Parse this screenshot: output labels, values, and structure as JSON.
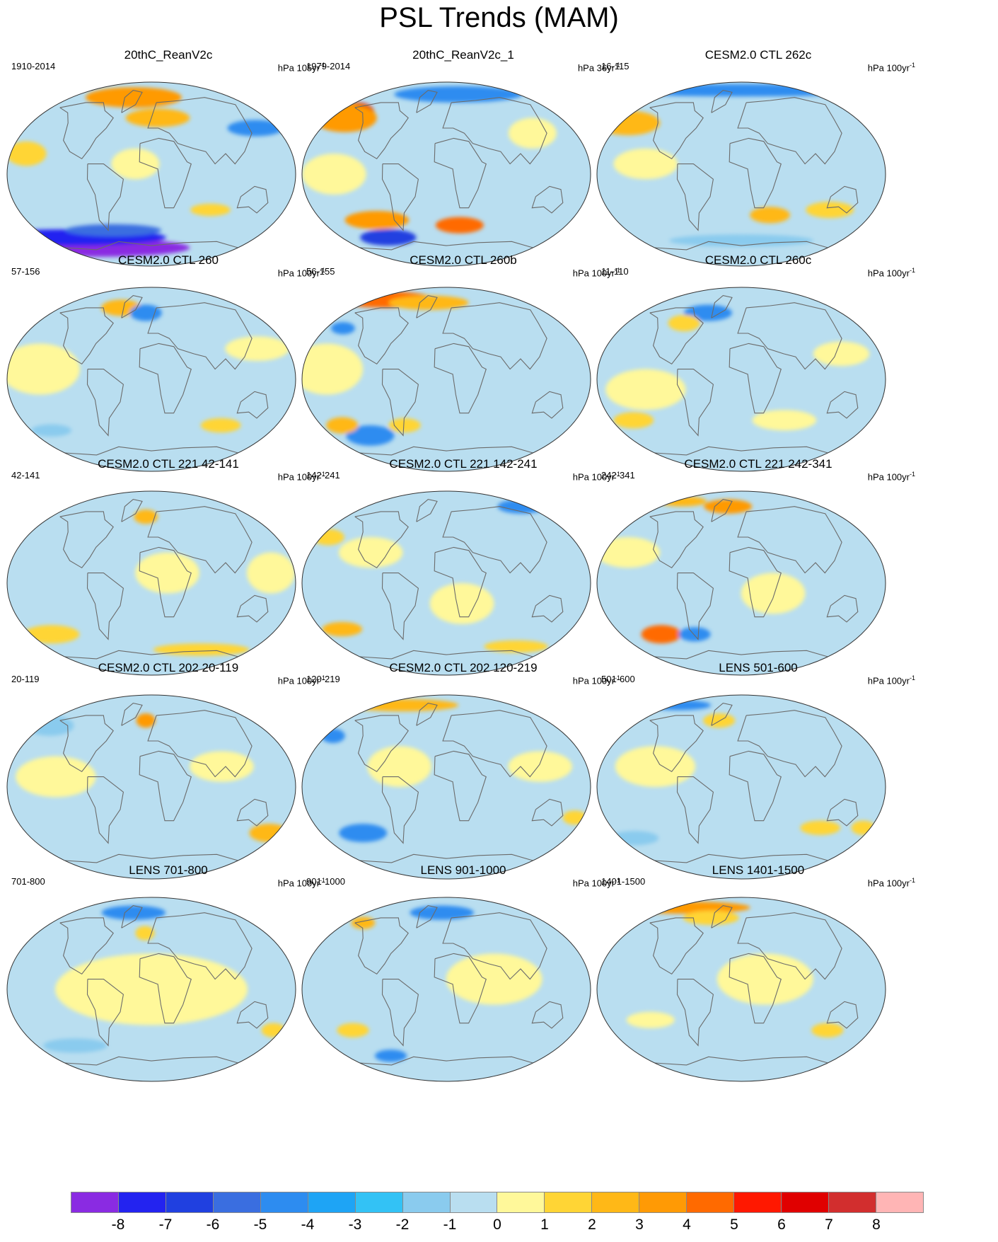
{
  "title": "PSL Trends (MAM)",
  "palette": {
    "ocean_base": "#b9def0",
    "land_outline": "#6b6b6b",
    "frame": "#333333"
  },
  "colorbar": {
    "colors": [
      "#8a2be2",
      "#2323f0",
      "#2040e0",
      "#3a6ee0",
      "#2d8cf0",
      "#1ea4f5",
      "#33c2f5",
      "#8acbee",
      "#b9def0",
      "#fff89a",
      "#ffd535",
      "#ffb817",
      "#ff9a05",
      "#ff6a00",
      "#ff1800",
      "#e00000",
      "#d22e2e",
      "#ffb5b5"
    ],
    "labels": [
      "-8",
      "-7",
      "-6",
      "-5",
      "-4",
      "-3",
      "-2",
      "-1",
      "0",
      "1",
      "2",
      "3",
      "4",
      "5",
      "6",
      "7",
      "8"
    ]
  },
  "panels": [
    {
      "title": "20thC_ReanV2c",
      "range": "1910-2014",
      "units": "hPa 105yr",
      "units_sup": "-1",
      "blobs": [
        {
          "lon": -120,
          "lat": -72,
          "rx": 120,
          "ry": 9,
          "c": "#8a2be2"
        },
        {
          "lon": -140,
          "lat": -62,
          "rx": 120,
          "ry": 8,
          "c": "#2323f0"
        },
        {
          "lon": -60,
          "lat": -55,
          "rx": 60,
          "ry": 6,
          "c": "#3a6ee0"
        },
        {
          "lon": -40,
          "lat": 75,
          "rx": 60,
          "ry": 10,
          "c": "#ff9a05"
        },
        {
          "lon": 10,
          "lat": 55,
          "rx": 40,
          "ry": 9,
          "c": "#ffb817"
        },
        {
          "lon": 150,
          "lat": 45,
          "rx": 35,
          "ry": 8,
          "c": "#2d8cf0"
        },
        {
          "lon": -160,
          "lat": 20,
          "rx": 25,
          "ry": 12,
          "c": "#ffd535"
        },
        {
          "lon": 80,
          "lat": -35,
          "rx": 25,
          "ry": 6,
          "c": "#ffd535"
        },
        {
          "lon": -20,
          "lat": 10,
          "rx": 30,
          "ry": 15,
          "c": "#fff89a"
        }
      ]
    },
    {
      "title": "20thC_ReanV2c_1",
      "range": "1979-2014",
      "units": "hPa 36yr",
      "units_sup": "-1",
      "blobs": [
        {
          "lon": -150,
          "lat": 60,
          "rx": 22,
          "ry": 10,
          "c": "#e00000"
        },
        {
          "lon": -160,
          "lat": 55,
          "rx": 40,
          "ry": 14,
          "c": "#ff9a05"
        },
        {
          "lon": 30,
          "lat": 78,
          "rx": 80,
          "ry": 8,
          "c": "#2d8cf0"
        },
        {
          "lon": -100,
          "lat": -62,
          "rx": 35,
          "ry": 8,
          "c": "#2040e0"
        },
        {
          "lon": -100,
          "lat": -45,
          "rx": 40,
          "ry": 9,
          "c": "#ff9a05"
        },
        {
          "lon": 20,
          "lat": -50,
          "rx": 30,
          "ry": 8,
          "c": "#ff6a00"
        },
        {
          "lon": 120,
          "lat": 40,
          "rx": 30,
          "ry": 15,
          "c": "#fff89a"
        },
        {
          "lon": -140,
          "lat": 0,
          "rx": 40,
          "ry": 20,
          "c": "#fff89a"
        }
      ]
    },
    {
      "title": "CESM2.0 CTL 262c",
      "range": "16-115",
      "units": "hPa 100yr",
      "units_sup": "-1",
      "blobs": [
        {
          "lon": 0,
          "lat": 82,
          "rx": 180,
          "ry": 6,
          "c": "#2d8cf0"
        },
        {
          "lon": -170,
          "lat": 50,
          "rx": 40,
          "ry": 12,
          "c": "#ffb817"
        },
        {
          "lon": 40,
          "lat": -40,
          "rx": 25,
          "ry": 8,
          "c": "#ffb817"
        },
        {
          "lon": 120,
          "lat": -35,
          "rx": 30,
          "ry": 8,
          "c": "#ffd535"
        },
        {
          "lon": -120,
          "lat": 10,
          "rx": 40,
          "ry": 15,
          "c": "#fff89a"
        },
        {
          "lon": 0,
          "lat": -65,
          "rx": 90,
          "ry": 6,
          "c": "#8acbee"
        }
      ]
    },
    {
      "title": "CESM2.0 CTL 260",
      "range": "57-156",
      "units": "hPa 100yr",
      "units_sup": "-1",
      "blobs": [
        {
          "lon": -60,
          "lat": 70,
          "rx": 25,
          "ry": 8,
          "c": "#ffb817"
        },
        {
          "lon": -10,
          "lat": 65,
          "rx": 20,
          "ry": 8,
          "c": "#2d8cf0"
        },
        {
          "lon": -140,
          "lat": 10,
          "rx": 50,
          "ry": 25,
          "c": "#fff89a"
        },
        {
          "lon": 140,
          "lat": 30,
          "rx": 40,
          "ry": 12,
          "c": "#fff89a"
        },
        {
          "lon": 100,
          "lat": -45,
          "rx": 25,
          "ry": 7,
          "c": "#ffd535"
        },
        {
          "lon": -150,
          "lat": -50,
          "rx": 25,
          "ry": 6,
          "c": "#8acbee"
        }
      ]
    },
    {
      "title": "CESM2.0 CTL 260b",
      "range": "56-155",
      "units": "hPa 100yr",
      "units_sup": "-1",
      "blobs": [
        {
          "lon": -150,
          "lat": 78,
          "rx": 60,
          "ry": 8,
          "c": "#ff6a00"
        },
        {
          "lon": -40,
          "lat": 75,
          "rx": 50,
          "ry": 7,
          "c": "#ffb817"
        },
        {
          "lon": -155,
          "lat": 50,
          "rx": 15,
          "ry": 6,
          "c": "#2d8cf0"
        },
        {
          "lon": -120,
          "lat": -55,
          "rx": 30,
          "ry": 10,
          "c": "#2d8cf0"
        },
        {
          "lon": -150,
          "lat": -45,
          "rx": 20,
          "ry": 8,
          "c": "#ffb817"
        },
        {
          "lon": -60,
          "lat": -45,
          "rx": 20,
          "ry": 7,
          "c": "#ffd535"
        },
        {
          "lon": -150,
          "lat": 10,
          "rx": 45,
          "ry": 25,
          "c": "#fff89a"
        }
      ]
    },
    {
      "title": "CESM2.0 CTL 260c",
      "range": "11-110",
      "units": "hPa 100yr",
      "units_sup": "-1",
      "blobs": [
        {
          "lon": -60,
          "lat": 65,
          "rx": 30,
          "ry": 8,
          "c": "#2d8cf0"
        },
        {
          "lon": -90,
          "lat": 55,
          "rx": 20,
          "ry": 8,
          "c": "#ffd535"
        },
        {
          "lon": -150,
          "lat": -40,
          "rx": 25,
          "ry": 8,
          "c": "#ffd535"
        },
        {
          "lon": 130,
          "lat": 25,
          "rx": 35,
          "ry": 12,
          "c": "#fff89a"
        },
        {
          "lon": -120,
          "lat": -10,
          "rx": 50,
          "ry": 20,
          "c": "#fff89a"
        },
        {
          "lon": 60,
          "lat": -40,
          "rx": 40,
          "ry": 10,
          "c": "#fff89a"
        }
      ]
    },
    {
      "title": "CESM2.0 CTL 221 42-141",
      "range": "42-141",
      "units": "hPa 100yr",
      "units_sup": "-1",
      "blobs": [
        {
          "lon": -10,
          "lat": 65,
          "rx": 15,
          "ry": 7,
          "c": "#ffb817"
        },
        {
          "lon": -150,
          "lat": -50,
          "rx": 35,
          "ry": 9,
          "c": "#ffd535"
        },
        {
          "lon": 90,
          "lat": -65,
          "rx": 60,
          "ry": 6,
          "c": "#ffd535"
        },
        {
          "lon": 20,
          "lat": 10,
          "rx": 40,
          "ry": 20,
          "c": "#fff89a"
        },
        {
          "lon": 150,
          "lat": 10,
          "rx": 30,
          "ry": 20,
          "c": "#fff89a"
        }
      ]
    },
    {
      "title": "CESM2.0 CTL 221 142-241",
      "range": "142-241",
      "units": "hPa 100yr",
      "units_sup": "-1",
      "blobs": [
        {
          "lon": 170,
          "lat": 75,
          "rx": 30,
          "ry": 7,
          "c": "#2d8cf0"
        },
        {
          "lon": -150,
          "lat": -45,
          "rx": 25,
          "ry": 7,
          "c": "#ffb817"
        },
        {
          "lon": 120,
          "lat": -62,
          "rx": 40,
          "ry": 6,
          "c": "#ffd535"
        },
        {
          "lon": -170,
          "lat": 45,
          "rx": 20,
          "ry": 8,
          "c": "#ffd535"
        },
        {
          "lon": -100,
          "lat": 30,
          "rx": 40,
          "ry": 15,
          "c": "#fff89a"
        },
        {
          "lon": 20,
          "lat": -20,
          "rx": 40,
          "ry": 20,
          "c": "#fff89a"
        }
      ]
    },
    {
      "title": "CESM2.0 CTL 221 242-341",
      "range": "242-341",
      "units": "hPa 100yr",
      "units_sup": "-1",
      "blobs": [
        {
          "lon": -160,
          "lat": 80,
          "rx": 30,
          "ry": 5,
          "c": "#ffb817"
        },
        {
          "lon": -30,
          "lat": 75,
          "rx": 30,
          "ry": 7,
          "c": "#ff9a05"
        },
        {
          "lon": -120,
          "lat": -50,
          "rx": 25,
          "ry": 9,
          "c": "#ff6a00"
        },
        {
          "lon": -70,
          "lat": -50,
          "rx": 20,
          "ry": 7,
          "c": "#2d8cf0"
        },
        {
          "lon": 40,
          "lat": -10,
          "rx": 40,
          "ry": 20,
          "c": "#fff89a"
        },
        {
          "lon": -150,
          "lat": 30,
          "rx": 40,
          "ry": 15,
          "c": "#fff89a"
        }
      ]
    },
    {
      "title": "CESM2.0 CTL 202 20-119",
      "range": "20-119",
      "units": "hPa 100yr",
      "units_sup": "-1",
      "blobs": [
        {
          "lon": -10,
          "lat": 65,
          "rx": 12,
          "ry": 7,
          "c": "#ff9a05"
        },
        {
          "lon": 170,
          "lat": -45,
          "rx": 25,
          "ry": 9,
          "c": "#ffb817"
        },
        {
          "lon": 90,
          "lat": 20,
          "rx": 40,
          "ry": 15,
          "c": "#fff89a"
        },
        {
          "lon": -120,
          "lat": 10,
          "rx": 50,
          "ry": 20,
          "c": "#fff89a"
        },
        {
          "lon": -170,
          "lat": 60,
          "rx": 30,
          "ry": 10,
          "c": "#8acbee"
        }
      ]
    },
    {
      "title": "CESM2.0 CTL 202 120-219",
      "range": "120-219",
      "units": "hPa 100yr",
      "units_sup": "-1",
      "blobs": [
        {
          "lon": -120,
          "lat": 80,
          "rx": 70,
          "ry": 6,
          "c": "#ffb817"
        },
        {
          "lon": -170,
          "lat": 50,
          "rx": 15,
          "ry": 7,
          "c": "#2d8cf0"
        },
        {
          "lon": -120,
          "lat": -45,
          "rx": 30,
          "ry": 9,
          "c": "#2d8cf0"
        },
        {
          "lon": 170,
          "lat": -30,
          "rx": 15,
          "ry": 7,
          "c": "#ffd535"
        },
        {
          "lon": -60,
          "lat": 20,
          "rx": 40,
          "ry": 20,
          "c": "#fff89a"
        },
        {
          "lon": 120,
          "lat": 20,
          "rx": 40,
          "ry": 15,
          "c": "#fff89a"
        }
      ]
    },
    {
      "title": "LENS 501-600",
      "range": "501-600",
      "units": "hPa 100yr",
      "units_sup": "-1",
      "blobs": [
        {
          "lon": -170,
          "lat": 80,
          "rx": 40,
          "ry": 5,
          "c": "#2d8cf0"
        },
        {
          "lon": -40,
          "lat": 65,
          "rx": 20,
          "ry": 7,
          "c": "#ffd535"
        },
        {
          "lon": 110,
          "lat": -40,
          "rx": 25,
          "ry": 7,
          "c": "#ffd535"
        },
        {
          "lon": 170,
          "lat": -40,
          "rx": 15,
          "ry": 7,
          "c": "#ffd535"
        },
        {
          "lon": -160,
          "lat": -50,
          "rx": 30,
          "ry": 7,
          "c": "#8acbee"
        },
        {
          "lon": -110,
          "lat": 20,
          "rx": 50,
          "ry": 20,
          "c": "#fff89a"
        }
      ]
    },
    {
      "title": "LENS 701-800",
      "range": "701-800",
      "units": "hPa 100yr",
      "units_sup": "-1",
      "blobs": [
        {
          "lon": -40,
          "lat": 75,
          "rx": 40,
          "ry": 7,
          "c": "#2d8cf0"
        },
        {
          "lon": -10,
          "lat": 55,
          "rx": 12,
          "ry": 7,
          "c": "#ffd535"
        },
        {
          "lon": 170,
          "lat": -40,
          "rx": 15,
          "ry": 7,
          "c": "#ffd535"
        },
        {
          "lon": -120,
          "lat": -55,
          "rx": 40,
          "ry": 7,
          "c": "#8acbee"
        },
        {
          "lon": 0,
          "lat": 0,
          "rx": 120,
          "ry": 35,
          "c": "#fff89a"
        }
      ]
    },
    {
      "title": "LENS 901-1000",
      "range": "901-1000",
      "units": "hPa 100yr",
      "units_sup": "-1",
      "blobs": [
        {
          "lon": -10,
          "lat": 75,
          "rx": 40,
          "ry": 7,
          "c": "#2d8cf0"
        },
        {
          "lon": -150,
          "lat": 65,
          "rx": 15,
          "ry": 6,
          "c": "#ffb817"
        },
        {
          "lon": -100,
          "lat": -65,
          "rx": 20,
          "ry": 6,
          "c": "#2d8cf0"
        },
        {
          "lon": -130,
          "lat": -40,
          "rx": 20,
          "ry": 7,
          "c": "#ffd535"
        },
        {
          "lon": 60,
          "lat": 10,
          "rx": 60,
          "ry": 25,
          "c": "#fff89a"
        }
      ]
    },
    {
      "title": "LENS 1401-1500",
      "range": "1401-1500",
      "units": "hPa 100yr",
      "units_sup": "-1",
      "blobs": [
        {
          "lon": -150,
          "lat": 80,
          "rx": 80,
          "ry": 6,
          "c": "#ff9a05"
        },
        {
          "lon": -60,
          "lat": 70,
          "rx": 35,
          "ry": 7,
          "c": "#ffd535"
        },
        {
          "lon": 120,
          "lat": -40,
          "rx": 20,
          "ry": 7,
          "c": "#ffd535"
        },
        {
          "lon": -120,
          "lat": -30,
          "rx": 30,
          "ry": 8,
          "c": "#fff89a"
        },
        {
          "lon": 30,
          "lat": 10,
          "rx": 60,
          "ry": 25,
          "c": "#fff89a"
        }
      ]
    }
  ]
}
